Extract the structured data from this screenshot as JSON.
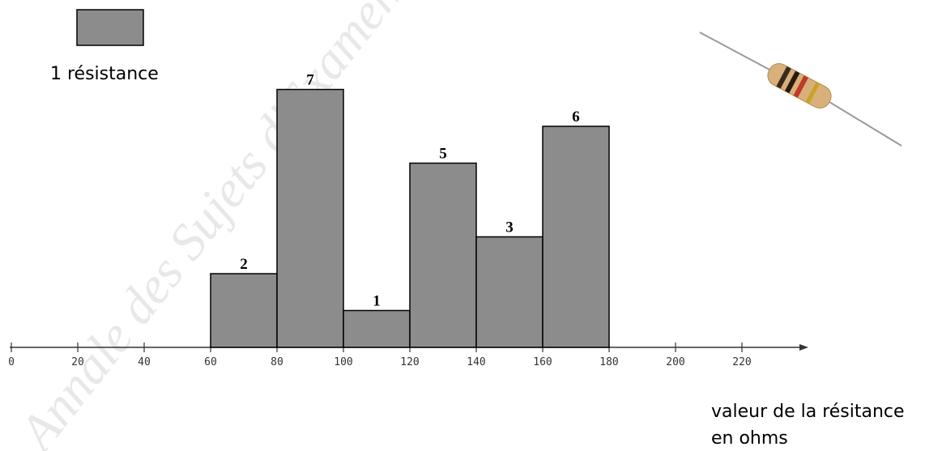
{
  "chart_data": {
    "type": "bar",
    "bin_edges": [
      60,
      80,
      100,
      120,
      140,
      160,
      180
    ],
    "values": [
      2,
      7,
      1,
      5,
      3,
      6
    ],
    "x_ticks": [
      0,
      20,
      40,
      60,
      80,
      100,
      120,
      140,
      160,
      180,
      200,
      220
    ],
    "xlim": [
      0,
      240
    ],
    "ylim": [
      0,
      7
    ],
    "xlabel_line1": "valeur de la résitance",
    "xlabel_line2": "en ohms",
    "legend_label": "1 résistance",
    "bar_color": "#8c8c8c",
    "grid": false
  },
  "watermark": "Annale des Sujets d'Examens",
  "colors": {
    "bar_fill": "#8c8c8c",
    "outline": "#000000",
    "axis": "#333333",
    "watermark": "#e6e6e6"
  },
  "icons": {
    "resistor": "resistor-icon"
  }
}
